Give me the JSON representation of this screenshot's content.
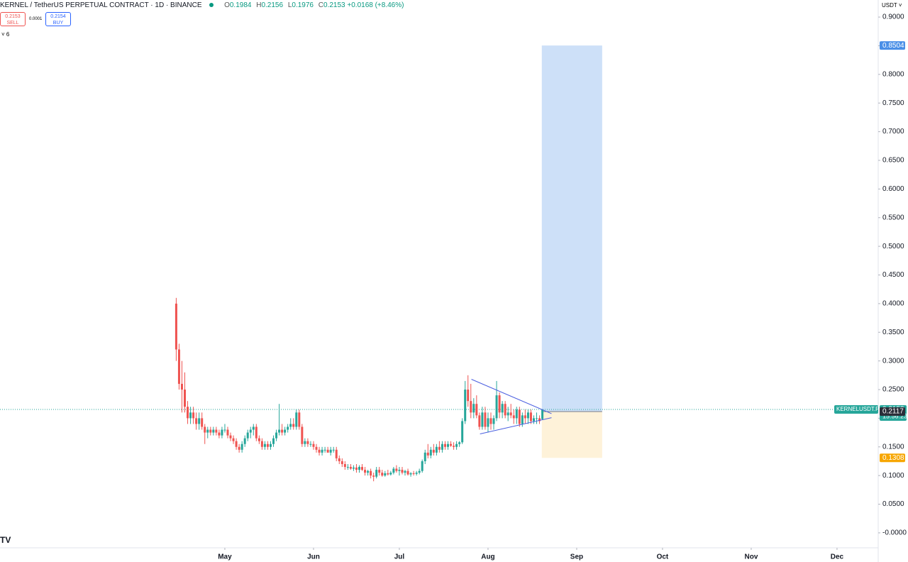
{
  "header": {
    "symbol": "KERNEL / TetherUS PERPETUAL CONTRACT · 1D · BINANCE",
    "o": "O",
    "o_val": "0.1984",
    "h": "H",
    "h_val": "0.2156",
    "l": "L",
    "l_val": "0.1976",
    "c": "C",
    "c_val": "0.2153",
    "change": "+0.0168 (+8.46%)",
    "sell_price": "0.2153",
    "sell": "SELL",
    "spread": "0.0001",
    "buy_price": "0.2154",
    "buy": "BUY",
    "indicators": "6",
    "currency": "USDT"
  },
  "chart_data": {
    "type": "candlestick",
    "up_color": "#26a69a",
    "down_color": "#ef5350",
    "candles": [
      [
        0.4,
        0.41,
        0.3,
        0.32
      ],
      [
        0.32,
        0.33,
        0.25,
        0.26
      ],
      [
        0.26,
        0.3,
        0.21,
        0.25
      ],
      [
        0.25,
        0.28,
        0.21,
        0.22
      ],
      [
        0.22,
        0.23,
        0.19,
        0.2
      ],
      [
        0.2,
        0.22,
        0.19,
        0.21
      ],
      [
        0.21,
        0.22,
        0.19,
        0.2
      ],
      [
        0.2,
        0.21,
        0.18,
        0.19
      ],
      [
        0.19,
        0.21,
        0.18,
        0.2
      ],
      [
        0.2,
        0.21,
        0.18,
        0.185
      ],
      [
        0.185,
        0.19,
        0.155,
        0.175
      ],
      [
        0.175,
        0.185,
        0.165,
        0.18
      ],
      [
        0.18,
        0.185,
        0.17,
        0.175
      ],
      [
        0.175,
        0.185,
        0.17,
        0.18
      ],
      [
        0.18,
        0.185,
        0.17,
        0.175
      ],
      [
        0.175,
        0.18,
        0.165,
        0.17
      ],
      [
        0.17,
        0.185,
        0.165,
        0.18
      ],
      [
        0.18,
        0.19,
        0.175,
        0.18
      ],
      [
        0.18,
        0.185,
        0.165,
        0.17
      ],
      [
        0.17,
        0.175,
        0.16,
        0.165
      ],
      [
        0.165,
        0.17,
        0.155,
        0.16
      ],
      [
        0.16,
        0.165,
        0.145,
        0.15
      ],
      [
        0.15,
        0.155,
        0.14,
        0.145
      ],
      [
        0.145,
        0.16,
        0.14,
        0.155
      ],
      [
        0.155,
        0.17,
        0.15,
        0.165
      ],
      [
        0.165,
        0.18,
        0.16,
        0.175
      ],
      [
        0.175,
        0.185,
        0.165,
        0.18
      ],
      [
        0.18,
        0.19,
        0.17,
        0.185
      ],
      [
        0.185,
        0.19,
        0.16,
        0.165
      ],
      [
        0.165,
        0.17,
        0.155,
        0.16
      ],
      [
        0.16,
        0.165,
        0.145,
        0.15
      ],
      [
        0.15,
        0.16,
        0.145,
        0.155
      ],
      [
        0.155,
        0.16,
        0.145,
        0.15
      ],
      [
        0.15,
        0.16,
        0.145,
        0.155
      ],
      [
        0.155,
        0.17,
        0.15,
        0.165
      ],
      [
        0.165,
        0.18,
        0.16,
        0.175
      ],
      [
        0.175,
        0.225,
        0.17,
        0.18
      ],
      [
        0.18,
        0.19,
        0.17,
        0.175
      ],
      [
        0.175,
        0.185,
        0.17,
        0.18
      ],
      [
        0.18,
        0.19,
        0.175,
        0.185
      ],
      [
        0.185,
        0.2,
        0.18,
        0.19
      ],
      [
        0.19,
        0.2,
        0.18,
        0.185
      ],
      [
        0.185,
        0.215,
        0.18,
        0.21
      ],
      [
        0.21,
        0.215,
        0.18,
        0.185
      ],
      [
        0.185,
        0.19,
        0.15,
        0.155
      ],
      [
        0.155,
        0.165,
        0.15,
        0.16
      ],
      [
        0.16,
        0.165,
        0.15,
        0.155
      ],
      [
        0.155,
        0.16,
        0.15,
        0.155
      ],
      [
        0.155,
        0.16,
        0.145,
        0.15
      ],
      [
        0.15,
        0.155,
        0.14,
        0.145
      ],
      [
        0.145,
        0.15,
        0.135,
        0.14
      ],
      [
        0.14,
        0.15,
        0.135,
        0.145
      ],
      [
        0.145,
        0.15,
        0.14,
        0.145
      ],
      [
        0.145,
        0.15,
        0.14,
        0.14
      ],
      [
        0.14,
        0.15,
        0.135,
        0.145
      ],
      [
        0.145,
        0.15,
        0.14,
        0.145
      ],
      [
        0.145,
        0.15,
        0.125,
        0.13
      ],
      [
        0.13,
        0.135,
        0.12,
        0.125
      ],
      [
        0.125,
        0.13,
        0.115,
        0.12
      ],
      [
        0.12,
        0.125,
        0.11,
        0.115
      ],
      [
        0.115,
        0.12,
        0.11,
        0.115
      ],
      [
        0.115,
        0.12,
        0.11,
        0.112
      ],
      [
        0.112,
        0.118,
        0.108,
        0.114
      ],
      [
        0.114,
        0.12,
        0.105,
        0.11
      ],
      [
        0.11,
        0.118,
        0.105,
        0.115
      ],
      [
        0.115,
        0.12,
        0.108,
        0.11
      ],
      [
        0.11,
        0.115,
        0.1,
        0.105
      ],
      [
        0.105,
        0.11,
        0.1,
        0.108
      ],
      [
        0.108,
        0.112,
        0.095,
        0.1
      ],
      [
        0.1,
        0.105,
        0.09,
        0.098
      ],
      [
        0.098,
        0.115,
        0.095,
        0.11
      ],
      [
        0.11,
        0.115,
        0.1,
        0.105
      ],
      [
        0.105,
        0.11,
        0.098,
        0.1
      ],
      [
        0.1,
        0.108,
        0.098,
        0.104
      ],
      [
        0.104,
        0.11,
        0.1,
        0.102
      ],
      [
        0.102,
        0.108,
        0.1,
        0.105
      ],
      [
        0.105,
        0.115,
        0.102,
        0.112
      ],
      [
        0.112,
        0.118,
        0.105,
        0.108
      ],
      [
        0.108,
        0.115,
        0.1,
        0.11
      ],
      [
        0.11,
        0.115,
        0.102,
        0.105
      ],
      [
        0.105,
        0.11,
        0.1,
        0.108
      ],
      [
        0.108,
        0.112,
        0.1,
        0.102
      ],
      [
        0.102,
        0.106,
        0.098,
        0.104
      ],
      [
        0.104,
        0.108,
        0.1,
        0.103
      ],
      [
        0.103,
        0.108,
        0.1,
        0.105
      ],
      [
        0.105,
        0.112,
        0.102,
        0.108
      ],
      [
        0.108,
        0.128,
        0.105,
        0.125
      ],
      [
        0.125,
        0.145,
        0.12,
        0.14
      ],
      [
        0.14,
        0.155,
        0.13,
        0.135
      ],
      [
        0.135,
        0.15,
        0.13,
        0.145
      ],
      [
        0.145,
        0.155,
        0.135,
        0.14
      ],
      [
        0.14,
        0.155,
        0.135,
        0.15
      ],
      [
        0.15,
        0.16,
        0.14,
        0.145
      ],
      [
        0.145,
        0.16,
        0.14,
        0.155
      ],
      [
        0.155,
        0.16,
        0.145,
        0.15
      ],
      [
        0.15,
        0.16,
        0.145,
        0.155
      ],
      [
        0.155,
        0.16,
        0.15,
        0.152
      ],
      [
        0.152,
        0.158,
        0.145,
        0.15
      ],
      [
        0.15,
        0.16,
        0.145,
        0.155
      ],
      [
        0.155,
        0.16,
        0.15,
        0.158
      ],
      [
        0.158,
        0.2,
        0.155,
        0.195
      ],
      [
        0.195,
        0.265,
        0.19,
        0.25
      ],
      [
        0.25,
        0.275,
        0.22,
        0.23
      ],
      [
        0.23,
        0.26,
        0.2,
        0.21
      ],
      [
        0.21,
        0.235,
        0.2,
        0.225
      ],
      [
        0.225,
        0.24,
        0.2,
        0.205
      ],
      [
        0.205,
        0.21,
        0.18,
        0.185
      ],
      [
        0.185,
        0.22,
        0.18,
        0.21
      ],
      [
        0.21,
        0.22,
        0.18,
        0.185
      ],
      [
        0.185,
        0.21,
        0.175,
        0.2
      ],
      [
        0.2,
        0.21,
        0.18,
        0.19
      ],
      [
        0.19,
        0.205,
        0.18,
        0.2
      ],
      [
        0.2,
        0.265,
        0.195,
        0.24
      ],
      [
        0.24,
        0.245,
        0.2,
        0.21
      ],
      [
        0.21,
        0.23,
        0.2,
        0.225
      ],
      [
        0.225,
        0.23,
        0.2,
        0.205
      ],
      [
        0.205,
        0.22,
        0.195,
        0.21
      ],
      [
        0.21,
        0.225,
        0.2,
        0.205
      ],
      [
        0.205,
        0.215,
        0.19,
        0.2
      ],
      [
        0.2,
        0.22,
        0.19,
        0.215
      ],
      [
        0.215,
        0.22,
        0.185,
        0.19
      ],
      [
        0.19,
        0.21,
        0.185,
        0.205
      ],
      [
        0.205,
        0.215,
        0.19,
        0.2
      ],
      [
        0.2,
        0.215,
        0.19,
        0.21
      ],
      [
        0.21,
        0.215,
        0.19,
        0.195
      ],
      [
        0.195,
        0.205,
        0.19,
        0.2
      ],
      [
        0.2,
        0.21,
        0.19,
        0.2
      ],
      [
        0.2,
        0.205,
        0.19,
        0.195
      ],
      [
        0.1984,
        0.2156,
        0.1976,
        0.2153
      ]
    ],
    "xlim": [
      -61.6,
      245.4
    ],
    "xticks": [
      {
        "value": 17,
        "label": "May"
      },
      {
        "value": 48,
        "label": "Jun"
      },
      {
        "value": 78,
        "label": "Jul"
      },
      {
        "value": 109,
        "label": "Aug"
      },
      {
        "value": 140,
        "label": "Sep"
      },
      {
        "value": 170,
        "label": "Oct"
      },
      {
        "value": 201,
        "label": "Nov"
      },
      {
        "value": 231,
        "label": "Dec"
      }
    ],
    "ylim": [
      -0.0261,
      0.9298
    ],
    "yticks": [
      {
        "value": 0,
        "label": "-0.0000"
      },
      {
        "value": 0.05,
        "label": "0.0500"
      },
      {
        "value": 0.1,
        "label": "0.1000"
      },
      {
        "value": 0.15,
        "label": "0.1500"
      },
      {
        "value": 0.2,
        "label": "0.2000"
      },
      {
        "value": 0.25,
        "label": "0.2500"
      },
      {
        "value": 0.3,
        "label": "0.3000"
      },
      {
        "value": 0.35,
        "label": "0.3500"
      },
      {
        "value": 0.4,
        "label": "0.4000"
      },
      {
        "value": 0.45,
        "label": "0.4500"
      },
      {
        "value": 0.5,
        "label": "0.5000"
      },
      {
        "value": 0.55,
        "label": "0.5500"
      },
      {
        "value": 0.6,
        "label": "0.6000"
      },
      {
        "value": 0.65,
        "label": "0.6500"
      },
      {
        "value": 0.7,
        "label": "0.7000"
      },
      {
        "value": 0.75,
        "label": "0.7500"
      },
      {
        "value": 0.8,
        "label": "0.8000"
      },
      {
        "value": 0.85,
        "label": "0.8500"
      },
      {
        "value": 0.9,
        "label": "0.9000"
      }
    ],
    "last_price": 0.2153,
    "ticker": "KERNELUSDT.P",
    "countdown": "15:56:23",
    "position": {
      "start": 127.8,
      "end": 148.9,
      "target": 0.8504,
      "entry": 0.2117,
      "stop": 0.1308,
      "target_color": "#4a8fe7",
      "entry_color": "#2a2e39",
      "stop_color": "#f7a600"
    },
    "trendlines": [
      {
        "x": [
          103.2,
          131.2
        ],
        "y": [
          0.268,
          0.208
        ]
      },
      {
        "x": [
          106.2,
          131.2
        ],
        "y": [
          0.1726,
          0.201
        ]
      }
    ],
    "trendline_color": "#4a5fe0"
  }
}
